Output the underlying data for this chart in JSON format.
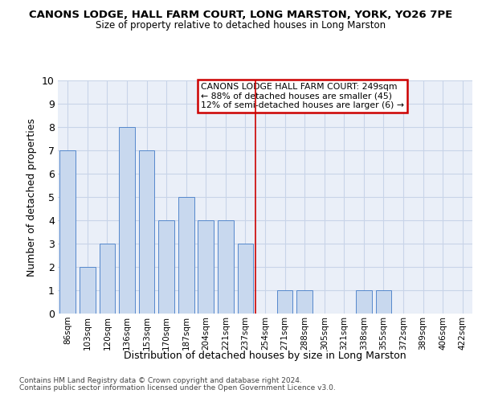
{
  "title": "CANONS LODGE, HALL FARM COURT, LONG MARSTON, YORK, YO26 7PE",
  "subtitle": "Size of property relative to detached houses in Long Marston",
  "xlabel": "Distribution of detached houses by size in Long Marston",
  "ylabel": "Number of detached properties",
  "categories": [
    "86sqm",
    "103sqm",
    "120sqm",
    "136sqm",
    "153sqm",
    "170sqm",
    "187sqm",
    "204sqm",
    "221sqm",
    "237sqm",
    "254sqm",
    "271sqm",
    "288sqm",
    "305sqm",
    "321sqm",
    "338sqm",
    "355sqm",
    "372sqm",
    "389sqm",
    "406sqm",
    "422sqm"
  ],
  "values": [
    7,
    2,
    3,
    8,
    7,
    4,
    5,
    4,
    4,
    3,
    0,
    1,
    1,
    0,
    0,
    1,
    1,
    0,
    0,
    0,
    0
  ],
  "bar_color": "#c8d8ee",
  "bar_edge_color": "#5588cc",
  "vline_x": 9.5,
  "vline_color": "#cc0000",
  "annotation_title": "CANONS LODGE HALL FARM COURT: 249sqm",
  "annotation_line1": "← 88% of detached houses are smaller (45)",
  "annotation_line2": "12% of semi-detached houses are larger (6) →",
  "annotation_box_color": "#cc0000",
  "ylim": [
    0,
    10
  ],
  "yticks": [
    0,
    1,
    2,
    3,
    4,
    5,
    6,
    7,
    8,
    9,
    10
  ],
  "grid_color": "#c8d4e8",
  "background_color": "#eaeff8",
  "footer_line1": "Contains HM Land Registry data © Crown copyright and database right 2024.",
  "footer_line2": "Contains public sector information licensed under the Open Government Licence v3.0."
}
